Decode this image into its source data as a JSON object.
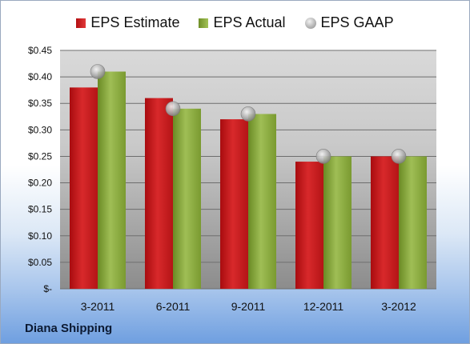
{
  "chart_data": {
    "type": "bar",
    "categories": [
      "3-2011",
      "6-2011",
      "9-2011",
      "12-2011",
      "3-2012"
    ],
    "series": [
      {
        "name": "EPS Estimate",
        "kind": "bar",
        "color": "#c81d1e",
        "values": [
          0.38,
          0.36,
          0.32,
          0.24,
          0.25
        ]
      },
      {
        "name": "EPS Actual",
        "kind": "bar",
        "color": "#8fae45",
        "values": [
          0.41,
          0.34,
          0.33,
          0.25,
          0.25
        ]
      },
      {
        "name": "EPS GAAP",
        "kind": "marker",
        "color": "#a8a8a8",
        "values": [
          0.41,
          0.34,
          0.33,
          0.25,
          0.25
        ]
      }
    ],
    "ylim": [
      0,
      0.45
    ],
    "yticks": [
      0,
      0.05,
      0.1,
      0.15,
      0.2,
      0.25,
      0.3,
      0.35,
      0.4,
      0.45
    ],
    "ytick_labels": [
      "$-",
      "$0.05",
      "$0.10",
      "$0.15",
      "$0.20",
      "$0.25",
      "$0.30",
      "$0.35",
      "$0.40",
      "$0.45"
    ],
    "grid": true,
    "legend_position": "top"
  },
  "footer": {
    "company": "Diana Shipping"
  }
}
